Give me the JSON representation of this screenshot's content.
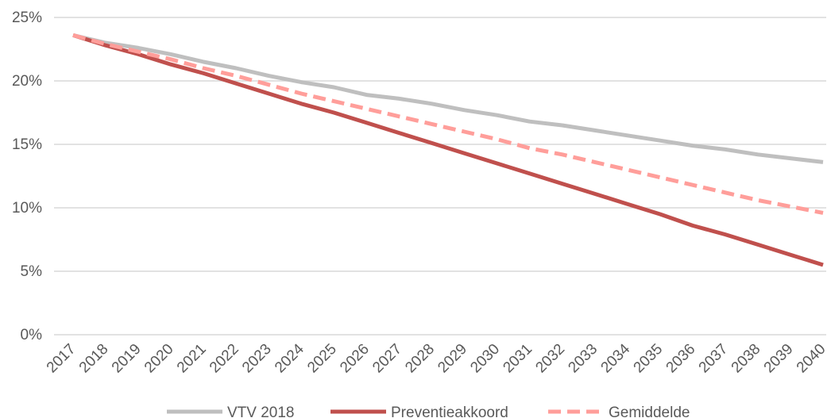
{
  "chart_data": {
    "type": "line",
    "title": "",
    "xlabel": "",
    "ylabel": "",
    "ylim": [
      0,
      25
    ],
    "y_ticks": [
      0,
      5,
      10,
      15,
      20,
      25
    ],
    "y_tick_labels": [
      "0%",
      "5%",
      "10%",
      "15%",
      "20%",
      "25%"
    ],
    "x": [
      "2017",
      "2018",
      "2019",
      "2020",
      "2021",
      "2022",
      "2023",
      "2024",
      "2025",
      "2026",
      "2027",
      "2028",
      "2029",
      "2030",
      "2031",
      "2032",
      "2033",
      "2034",
      "2035",
      "2036",
      "2037",
      "2038",
      "2039",
      "2040"
    ],
    "grid": "horizontal",
    "legend_position": "bottom",
    "series": [
      {
        "name": "VTV 2018",
        "color": "#bfbfbf",
        "style": "solid",
        "values": [
          23.6,
          23.0,
          22.6,
          22.1,
          21.5,
          21.0,
          20.4,
          19.9,
          19.5,
          18.9,
          18.6,
          18.2,
          17.7,
          17.3,
          16.8,
          16.5,
          16.1,
          15.7,
          15.3,
          14.9,
          14.6,
          14.2,
          13.9,
          13.6
        ]
      },
      {
        "name": "Preventieakkoord",
        "color": "#c0504d",
        "style": "solid",
        "values": [
          23.6,
          22.8,
          22.1,
          21.3,
          20.6,
          19.8,
          19.0,
          18.2,
          17.5,
          16.7,
          15.9,
          15.1,
          14.3,
          13.5,
          12.7,
          11.9,
          11.1,
          10.3,
          9.5,
          8.6,
          7.9,
          7.1,
          6.3,
          5.5
        ]
      },
      {
        "name": "Gemiddelde",
        "color": "#ff9e9a",
        "style": "dashed",
        "values": [
          23.6,
          22.9,
          22.3,
          21.7,
          21.0,
          20.4,
          19.7,
          19.0,
          18.4,
          17.8,
          17.2,
          16.6,
          16.0,
          15.4,
          14.7,
          14.2,
          13.6,
          13.0,
          12.4,
          11.8,
          11.2,
          10.6,
          10.1,
          9.6
        ]
      }
    ]
  }
}
